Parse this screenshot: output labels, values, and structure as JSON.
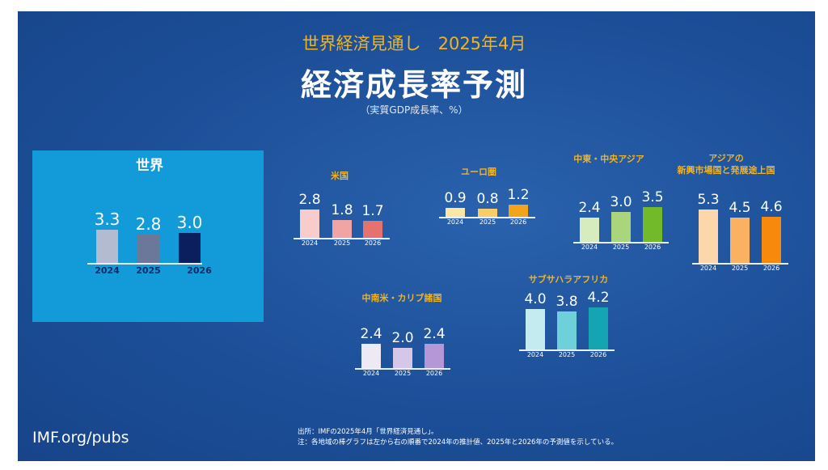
{
  "header": {
    "supertitle": "世界経済見通し　2025年4月",
    "title": "経済成長率予測",
    "unit": "（実質GDP成長率、%）"
  },
  "chart_data": [
    {
      "type": "bar",
      "title": "世界",
      "categories": [
        "2024",
        "2025",
        "2026"
      ],
      "values": [
        3.3,
        2.8,
        3.0
      ],
      "colors": [
        "#b3bbd0",
        "#6b7899",
        "#0b1e5e"
      ]
    },
    {
      "type": "bar",
      "title": "米国",
      "categories": [
        "2024",
        "2025",
        "2026"
      ],
      "values": [
        2.8,
        1.8,
        1.7
      ],
      "colors": [
        "#f7cccb",
        "#f0a4a3",
        "#e5726f"
      ]
    },
    {
      "type": "bar",
      "title": "ユーロ圏",
      "categories": [
        "2024",
        "2025",
        "2026"
      ],
      "values": [
        0.9,
        0.8,
        1.2
      ],
      "colors": [
        "#fde6a6",
        "#f8cd68",
        "#f2a51c"
      ]
    },
    {
      "type": "bar",
      "title": "中東・中央アジア",
      "categories": [
        "2024",
        "2025",
        "2026"
      ],
      "values": [
        2.4,
        3.0,
        3.5
      ],
      "colors": [
        "#d6ebbe",
        "#a9d57d",
        "#72ba2a"
      ]
    },
    {
      "type": "bar",
      "title": "アジアの\n新興市場国と発展途上国",
      "categories": [
        "2024",
        "2025",
        "2026"
      ],
      "values": [
        5.3,
        4.5,
        4.6
      ],
      "colors": [
        "#fcd7ab",
        "#fbb162",
        "#f78a0c"
      ]
    },
    {
      "type": "bar",
      "title": "中南米・カリブ諸国",
      "categories": [
        "2024",
        "2025",
        "2026"
      ],
      "values": [
        2.4,
        2.0,
        2.4
      ],
      "colors": [
        "#ede9f5",
        "#d5c7e9",
        "#b497d6"
      ]
    },
    {
      "type": "bar",
      "title": "サブサハラアフリカ",
      "categories": [
        "2024",
        "2025",
        "2026"
      ],
      "values": [
        4.0,
        3.8,
        4.2
      ],
      "colors": [
        "#c3ebf0",
        "#6ed0d8",
        "#15a4b1"
      ]
    }
  ],
  "footer": {
    "brand": "IMF.org/pubs",
    "source": "出所：IMFの2025年4月「世界経済見通し」。",
    "note": "注：各地域の棒グラフは左から右の順番で2024年の推計値、2025年と2026年の予測値を示している。"
  }
}
